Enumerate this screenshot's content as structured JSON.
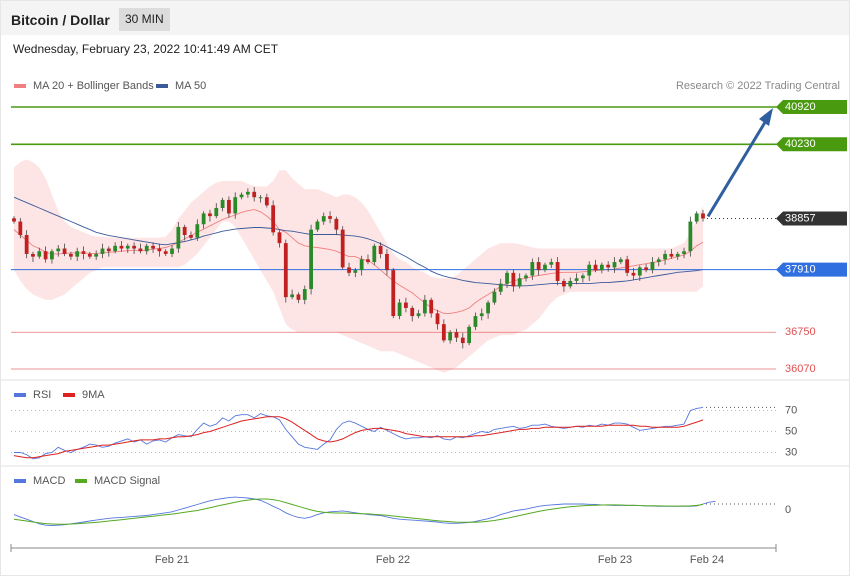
{
  "header": {
    "title": "Bitcoin / Dollar",
    "timeframe": "30 MIN",
    "datetime": "Wednesday, February 23, 2022 10:41:49 AM CET"
  },
  "credit": "Research © 2022 Trading Central",
  "colors": {
    "bollinger": "#f08080",
    "bollinger_fill": "#fde0e0",
    "ma50": "#3a5a9a",
    "resistance": "#4a9a10",
    "support": "#e05050",
    "pivot": "#2f6fe0",
    "arrow": "#2f5fa0",
    "candle_up": "#2a8a2a",
    "candle_down": "#c02020",
    "rsi": "#5577dd",
    "rsi_ma": "#dd2222",
    "macd": "#5577dd",
    "macd_signal": "#55aa22"
  },
  "chart_data": [
    {
      "type": "candlestick",
      "panel": "price",
      "legend": [
        "MA 20 + Bollinger Bands",
        "MA 50"
      ],
      "ylim": [
        35950,
        41050
      ],
      "x_ticks": [
        "Feb 21",
        "Feb 22",
        "Feb 23",
        "Feb 24"
      ],
      "levels": [
        {
          "value": 40920,
          "label": "40920",
          "kind": "resistance"
        },
        {
          "value": 40230,
          "label": "40230",
          "kind": "resistance"
        },
        {
          "value": 38857,
          "label": "38857",
          "kind": "current"
        },
        {
          "value": 37910,
          "label": "37910",
          "kind": "pivot"
        },
        {
          "value": 36750,
          "label": "36750",
          "kind": "support"
        },
        {
          "value": 36070,
          "label": "36070",
          "kind": "support"
        }
      ],
      "close": [
        38800,
        38550,
        38200,
        38150,
        38250,
        38100,
        38250,
        38300,
        38200,
        38150,
        38250,
        38200,
        38150,
        38200,
        38300,
        38250,
        38350,
        38300,
        38350,
        38300,
        38250,
        38350,
        38300,
        38250,
        38200,
        38300,
        38700,
        38550,
        38500,
        38750,
        38950,
        38900,
        39050,
        39200,
        38950,
        39250,
        39300,
        39350,
        39250,
        39250,
        39100,
        38600,
        38400,
        37400,
        37450,
        37350,
        37550,
        38650,
        38800,
        38900,
        38850,
        38650,
        37950,
        37850,
        37900,
        38100,
        38050,
        38350,
        38200,
        37900,
        37050,
        37300,
        37200,
        37050,
        37100,
        37350,
        37100,
        36900,
        36600,
        36750,
        36650,
        36550,
        36850,
        37050,
        37100,
        37300,
        37500,
        37650,
        37850,
        37600,
        37750,
        37800,
        38050,
        37900,
        38000,
        38050,
        37700,
        37600,
        37700,
        37750,
        37800,
        38000,
        37900,
        38000,
        37950,
        38050,
        38100,
        37850,
        37800,
        37950,
        37900,
        38050,
        38100,
        38200,
        38150,
        38200,
        38250,
        38800,
        38950,
        38857
      ],
      "ma20": [
        38650,
        38550,
        38450,
        38350,
        38300,
        38230,
        38200,
        38200,
        38210,
        38220,
        38220,
        38220,
        38210,
        38210,
        38220,
        38230,
        38240,
        38250,
        38260,
        38270,
        38260,
        38270,
        38290,
        38300,
        38320,
        38360,
        38410,
        38480,
        38540,
        38600,
        38660,
        38720,
        38780,
        38840,
        38880,
        38920,
        38970,
        39000,
        39020,
        38980,
        38900,
        38800,
        38650,
        38600,
        38500,
        38400,
        38350,
        38330,
        38320,
        38300,
        38280,
        38250,
        38200,
        38150,
        38150,
        38100,
        38080,
        38000,
        37900,
        37800,
        37700,
        37620,
        37550,
        37480,
        37380,
        37300,
        37200,
        37150,
        37100,
        37100,
        37120,
        37150,
        37200,
        37300,
        37380,
        37450,
        37520,
        37600,
        37650,
        37700,
        37730,
        37750,
        37780,
        37800,
        37820,
        37840,
        37850,
        37860,
        37860,
        37860,
        37870,
        37880,
        37890,
        37900,
        37910,
        37920,
        37940,
        37960,
        37980,
        38000,
        38020,
        38040,
        38060,
        38090,
        38120,
        38150,
        38180,
        38250,
        38350,
        38420
      ],
      "bb_upper": [
        39800,
        39900,
        39950,
        39900,
        39800,
        39600,
        39300,
        39000,
        38800,
        38700,
        38650,
        38600,
        38550,
        38520,
        38520,
        38510,
        38500,
        38500,
        38500,
        38500,
        38500,
        38500,
        38500,
        38500,
        38520,
        38650,
        38850,
        39000,
        39150,
        39250,
        39350,
        39450,
        39520,
        39550,
        39550,
        39550,
        39550,
        39500,
        39450,
        39450,
        39450,
        39550,
        39750,
        39750,
        39600,
        39500,
        39400,
        39400,
        39400,
        39350,
        39300,
        39250,
        39300,
        39300,
        39250,
        39150,
        39000,
        38800,
        38600,
        38400,
        38200,
        38100,
        38050,
        37950,
        37900,
        37850,
        37780,
        37750,
        37750,
        37750,
        37800,
        37900,
        38000,
        38100,
        38200,
        38300,
        38350,
        38400,
        38400,
        38400,
        38380,
        38350,
        38320,
        38300,
        38300,
        38300,
        38300,
        38300,
        38300,
        38300,
        38300,
        38300,
        38300,
        38300,
        38300,
        38300,
        38300,
        38300,
        38300,
        38300,
        38300,
        38300,
        38300,
        38300,
        38300,
        38350,
        38400,
        38600,
        38850,
        39100
      ],
      "bb_lower": [
        37900,
        37700,
        37550,
        37450,
        37400,
        37350,
        37350,
        37400,
        37450,
        37550,
        37650,
        37750,
        37850,
        37900,
        37950,
        37950,
        37950,
        37950,
        37950,
        37950,
        37950,
        37950,
        37950,
        37950,
        37950,
        37950,
        37950,
        38000,
        38100,
        38200,
        38350,
        38500,
        38650,
        38800,
        38800,
        38700,
        38500,
        38300,
        38100,
        37900,
        37700,
        37500,
        37200,
        36900,
        36800,
        36750,
        36750,
        36750,
        36750,
        36750,
        36750,
        36750,
        36700,
        36650,
        36600,
        36550,
        36500,
        36450,
        36400,
        36400,
        36400,
        36350,
        36300,
        36250,
        36200,
        36150,
        36100,
        36050,
        36000,
        36050,
        36100,
        36200,
        36300,
        36400,
        36500,
        36600,
        36650,
        36700,
        36700,
        36700,
        36750,
        36800,
        36900,
        37000,
        37150,
        37300,
        37400,
        37450,
        37500,
        37500,
        37500,
        37500,
        37500,
        37500,
        37500,
        37500,
        37500,
        37500,
        37500,
        37500,
        37500,
        37500,
        37500,
        37500,
        37500,
        37500,
        37500,
        37500,
        37500,
        37600
      ],
      "ma50": [
        39250,
        39200,
        39150,
        39100,
        39050,
        39000,
        38950,
        38900,
        38850,
        38800,
        38750,
        38700,
        38650,
        38600,
        38570,
        38540,
        38520,
        38500,
        38480,
        38460,
        38440,
        38420,
        38400,
        38380,
        38370,
        38390,
        38410,
        38430,
        38460,
        38490,
        38530,
        38560,
        38590,
        38620,
        38640,
        38660,
        38670,
        38680,
        38690,
        38690,
        38680,
        38670,
        38650,
        38630,
        38620,
        38600,
        38580,
        38560,
        38560,
        38560,
        38560,
        38560,
        38550,
        38540,
        38530,
        38510,
        38480,
        38440,
        38390,
        38330,
        38270,
        38210,
        38150,
        38080,
        38010,
        37950,
        37880,
        37830,
        37790,
        37760,
        37740,
        37710,
        37690,
        37670,
        37660,
        37650,
        37640,
        37630,
        37620,
        37610,
        37610,
        37610,
        37620,
        37630,
        37640,
        37650,
        37650,
        37650,
        37650,
        37650,
        37650,
        37650,
        37660,
        37670,
        37670,
        37680,
        37690,
        37700,
        37720,
        37740,
        37760,
        37780,
        37800,
        37820,
        37840,
        37860,
        37870,
        37880,
        37890,
        37910
      ]
    },
    {
      "type": "line",
      "panel": "rsi",
      "legend": [
        "RSI",
        "9MA"
      ],
      "ylim": [
        20,
        80
      ],
      "y_ticks": [
        70,
        50,
        30
      ],
      "rsi": [
        30,
        30,
        28,
        24,
        25,
        29,
        30,
        35,
        32,
        30,
        33,
        35,
        38,
        37,
        35,
        36,
        39,
        41,
        43,
        40,
        42,
        38,
        41,
        42,
        40,
        44,
        47,
        46,
        45,
        52,
        58,
        55,
        57,
        63,
        60,
        65,
        66,
        66,
        63,
        67,
        65,
        64,
        61,
        52,
        45,
        38,
        35,
        34,
        33,
        38,
        42,
        52,
        58,
        60,
        58,
        55,
        52,
        50,
        54,
        51,
        48,
        45,
        43,
        44,
        44,
        45,
        44,
        46,
        43,
        42,
        45,
        44,
        46,
        48,
        50,
        49,
        52,
        53,
        54,
        55,
        53,
        54,
        56,
        56,
        57,
        55,
        54,
        53,
        54,
        55,
        54,
        56,
        55,
        57,
        56,
        58,
        58,
        57,
        54,
        51,
        52,
        53,
        54,
        55,
        55,
        56,
        57,
        70,
        72,
        73
      ],
      "rsi_ma": [
        27,
        26,
        25,
        25,
        26,
        27,
        28,
        29,
        31,
        32,
        33,
        34,
        35,
        36,
        37,
        37,
        38,
        39,
        40,
        41,
        42,
        42,
        42,
        43,
        43,
        44,
        45,
        45,
        46,
        47,
        49,
        50,
        52,
        54,
        56,
        58,
        60,
        61,
        62,
        63,
        64,
        64,
        64,
        62,
        59,
        55,
        51,
        47,
        43,
        41,
        40,
        41,
        43,
        46,
        49,
        51,
        52,
        53,
        53,
        52,
        51,
        50,
        48,
        47,
        46,
        45,
        45,
        45,
        45,
        45,
        45,
        45,
        45,
        46,
        46,
        47,
        48,
        49,
        50,
        51,
        52,
        52,
        53,
        53,
        54,
        54,
        54,
        54,
        54,
        55,
        55,
        55,
        55,
        55,
        56,
        56,
        56,
        56,
        56,
        55,
        55,
        54,
        54,
        54,
        54,
        54,
        55,
        57,
        59,
        61
      ]
    },
    {
      "type": "line",
      "panel": "macd",
      "legend": [
        "MACD",
        "MACD Signal"
      ],
      "ylim": [
        -500,
        500
      ],
      "y_ticks": [
        0
      ],
      "macd": [
        -100,
        -150,
        -200,
        -250,
        -300,
        -330,
        -340,
        -330,
        -320,
        -300,
        -280,
        -260,
        -240,
        -220,
        -200,
        -180,
        -170,
        -160,
        -150,
        -140,
        -130,
        -120,
        -100,
        -80,
        -60,
        -40,
        0,
        40,
        80,
        120,
        160,
        200,
        230,
        250,
        270,
        280,
        270,
        260,
        240,
        210,
        150,
        80,
        20,
        -60,
        -120,
        -160,
        -180,
        -150,
        -100,
        -60,
        -40,
        -30,
        -20,
        -40,
        -60,
        -80,
        -100,
        -110,
        -120,
        -150,
        -180,
        -200,
        -210,
        -220,
        -230,
        -240,
        -250,
        -260,
        -280,
        -290,
        -290,
        -280,
        -270,
        -250,
        -220,
        -190,
        -150,
        -100,
        -60,
        -20,
        0,
        20,
        50,
        80,
        100,
        110,
        120,
        130,
        130,
        130,
        130,
        125,
        120,
        110,
        105,
        100,
        100,
        100,
        100,
        95,
        90,
        85,
        80,
        80,
        80,
        80,
        80,
        80,
        90,
        130,
        170,
        190
      ],
      "macd_signal": [
        -200,
        -220,
        -240,
        -260,
        -280,
        -295,
        -305,
        -310,
        -310,
        -305,
        -300,
        -290,
        -280,
        -270,
        -255,
        -240,
        -225,
        -210,
        -195,
        -180,
        -165,
        -150,
        -135,
        -120,
        -105,
        -90,
        -70,
        -50,
        -30,
        -10,
        20,
        50,
        80,
        110,
        140,
        170,
        195,
        215,
        230,
        240,
        240,
        225,
        200,
        160,
        120,
        80,
        40,
        0,
        -30,
        -50,
        -60,
        -65,
        -65,
        -70,
        -75,
        -80,
        -85,
        -95,
        -105,
        -115,
        -130,
        -145,
        -160,
        -175,
        -190,
        -205,
        -220,
        -235,
        -245,
        -255,
        -262,
        -266,
        -268,
        -266,
        -258,
        -245,
        -228,
        -205,
        -180,
        -150,
        -120,
        -90,
        -60,
        -30,
        -5,
        15,
        35,
        55,
        70,
        82,
        92,
        100,
        105,
        108,
        110,
        110,
        108,
        105,
        102,
        98,
        94,
        91,
        89,
        87,
        85,
        85,
        86,
        90,
        100,
        120
      ]
    }
  ]
}
